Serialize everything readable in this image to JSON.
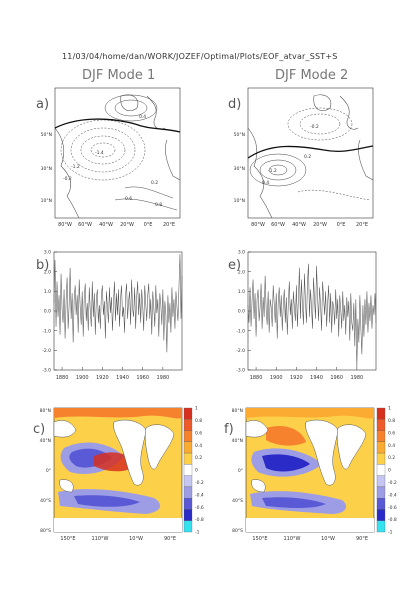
{
  "header": "11/03/04/home/dan/WORK/JOZEF/Optimal/Plots/EOF_atvar_SST+S",
  "titles": {
    "mode1": "DJF Mode 1",
    "mode2": "DJF Mode 2"
  },
  "panel_labels": {
    "a": "a)",
    "b": "b)",
    "c": "c)",
    "d": "d)",
    "e": "e)",
    "f": "f)"
  },
  "map_ticks": {
    "lat": [
      "50°N",
      "30°N",
      "10°N"
    ],
    "lon": [
      "80°W",
      "60°W",
      "40°W",
      "20°W",
      "0°E",
      "20°E"
    ]
  },
  "contour_labels": {
    "a": [
      "-1.4",
      "-1.2",
      "-0.2",
      "0.2",
      "0.4",
      "0.6",
      "0.8"
    ],
    "d": [
      "-0.2",
      "0.2",
      "0.4",
      "-1.2"
    ]
  },
  "sst_ticks": {
    "lat": [
      "80°N",
      "40°N",
      "0°",
      "40°S",
      "80°S"
    ],
    "lon": [
      "150°E",
      "110°W",
      "10°W",
      "90°E"
    ]
  },
  "colorbar": {
    "labels": [
      "1",
      "0.8",
      "0.6",
      "0.4",
      "0.2",
      "0",
      "-0.2",
      "-0.4",
      "-0.6",
      "-0.8",
      "-1"
    ],
    "colors": [
      "#d7301f",
      "#ef5a2a",
      "#f7822e",
      "#fbaa32",
      "#fdd04a",
      "#ffffff",
      "#c6c6f2",
      "#9d9de6",
      "#5a5ad6",
      "#2b2bc8",
      "#35e2f0"
    ]
  },
  "chart_data": [
    {
      "type": "line",
      "panel": "b",
      "title": "DJF Mode 1",
      "ylim": [
        -3,
        3
      ],
      "yticks": [
        "3.0",
        "2.0",
        "1.0",
        "0.0",
        "-1.0",
        "-2.0",
        "-3.0"
      ],
      "xticks": [
        "1880",
        "1900",
        "1920",
        "1940",
        "1960",
        "1980"
      ],
      "x_start": 1872,
      "x_end": 1999,
      "values": [
        0.4,
        2.6,
        -0.8,
        1.5,
        -0.3,
        0.8,
        -1.2,
        1.9,
        0.1,
        -0.6,
        1.1,
        -1.4,
        0.5,
        1.7,
        -0.9,
        0.3,
        2.2,
        -0.4,
        0.9,
        -1.6,
        0.6,
        1.3,
        -0.2,
        0.8,
        -1.1,
        1.6,
        0.2,
        -0.7,
        1.0,
        -1.3,
        0.7,
        1.4,
        -0.5,
        0.4,
        -1.0,
        1.2,
        0.0,
        -0.8,
        1.5,
        -0.3,
        0.9,
        -1.2,
        0.6,
        1.1,
        -0.6,
        0.3,
        -0.9,
        0.8,
        1.3,
        -0.2,
        0.5,
        -1.4,
        1.0,
        0.2,
        -0.6,
        1.2,
        -0.1,
        0.7,
        -1.0,
        0.4,
        1.5,
        -0.5,
        0.9,
        -0.2,
        1.1,
        -0.8,
        0.6,
        1.3,
        -0.3,
        0.2,
        -1.1,
        0.8,
        1.4,
        -0.4,
        0.5,
        1.0,
        -0.7,
        1.6,
        0.1,
        -0.3,
        1.2,
        -0.9,
        0.7,
        1.5,
        -0.2,
        0.9,
        -0.6,
        1.1,
        0.3,
        -1.0,
        1.3,
        0.4,
        -0.5,
        0.8,
        1.4,
        -0.4,
        0.6,
        -1.2,
        1.0,
        0.2,
        -0.8,
        1.3,
        -0.1,
        0.6,
        -1.3,
        0.9,
        0.3,
        -0.7,
        1.1,
        -1.5,
        0.5,
        -0.2,
        -2.1,
        0.8,
        -0.6,
        0.4,
        -1.1,
        1.2,
        -0.3,
        0.6,
        -0.9,
        1.0,
        0.2,
        -0.5,
        1.3,
        2.9,
        -0.4,
        1.8
      ]
    },
    {
      "type": "line",
      "panel": "e",
      "title": "DJF Mode 2",
      "ylim": [
        -3,
        3
      ],
      "yticks": [
        "3.0",
        "2.0",
        "1.0",
        "0.0",
        "-1.0",
        "-2.0",
        "-3.0"
      ],
      "xticks": [
        "1880",
        "1900",
        "1920",
        "1940",
        "1960",
        "1980"
      ],
      "x_start": 1872,
      "x_end": 1999,
      "values": [
        0.3,
        -0.6,
        1.2,
        -0.8,
        0.5,
        1.6,
        -0.4,
        0.9,
        -1.3,
        0.6,
        1.1,
        -0.5,
        0.2,
        1.4,
        -0.9,
        0.7,
        -0.3,
        1.8,
        0.1,
        -0.7,
        1.0,
        -1.1,
        0.6,
        0.2,
        -0.8,
        1.3,
        0.4,
        -0.6,
        0.9,
        -1.4,
        0.5,
        1.2,
        -0.3,
        0.8,
        -1.0,
        0.3,
        1.1,
        -0.6,
        0.7,
        -1.2,
        0.4,
        1.5,
        -0.2,
        0.6,
        -0.9,
        1.0,
        0.2,
        -0.5,
        1.3,
        -0.8,
        0.6,
        2.2,
        -0.4,
        1.6,
        0.3,
        -0.7,
        1.9,
        0.5,
        -0.6,
        1.4,
        2.4,
        -0.3,
        1.1,
        0.2,
        -0.9,
        1.7,
        0.6,
        -0.4,
        2.3,
        0.8,
        -0.5,
        1.2,
        0.3,
        -1.0,
        1.5,
        0.7,
        -0.2,
        1.0,
        -0.8,
        0.4,
        1.3,
        -0.6,
        0.9,
        -1.1,
        0.5,
        0.2,
        -0.7,
        1.1,
        -0.4,
        0.6,
        -1.3,
        0.8,
        0.1,
        -0.9,
        1.0,
        -0.5,
        0.3,
        -1.2,
        0.7,
        -0.3,
        0.5,
        -1.5,
        0.9,
        -0.6,
        -1.0,
        0.4,
        -1.8,
        0.6,
        -2.9,
        -0.4,
        -1.6,
        0.8,
        -0.9,
        -2.2,
        0.3,
        -1.3,
        0.6,
        -0.7,
        1.0,
        -1.1,
        0.4,
        -0.5,
        0.8,
        -0.9,
        0.3,
        -0.2,
        0.9,
        -0.6
      ]
    }
  ]
}
